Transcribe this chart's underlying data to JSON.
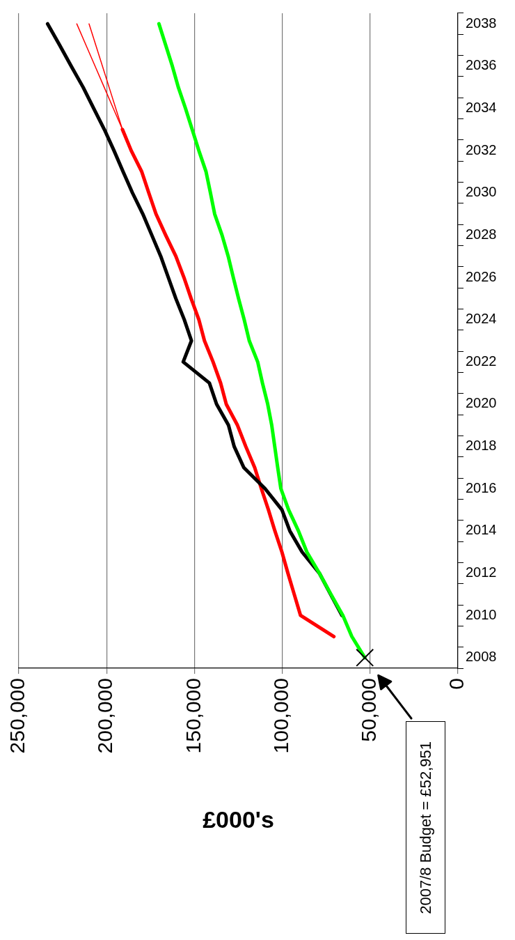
{
  "chart_data": {
    "type": "line",
    "orientation": "horizontal",
    "xlabel": "£000's",
    "categories": [
      "2038",
      null,
      "2036",
      null,
      "2034",
      null,
      "2032",
      null,
      "2030",
      null,
      "2028",
      null,
      "2026",
      null,
      "2024",
      null,
      "2022",
      null,
      "2020",
      null,
      "2018",
      null,
      "2016",
      null,
      "2014",
      null,
      "2012",
      null,
      "2010",
      null,
      "2008"
    ],
    "series": [
      {
        "color": "#00ff00",
        "values": [
          170200,
          166400,
          162600,
          159200,
          155100,
          151300,
          147500,
          143400,
          140900,
          138500,
          134300,
          130800,
          127900,
          124900,
          121700,
          118800,
          114000,
          111300,
          108300,
          106000,
          104300,
          102600,
          100800,
          96400,
          90800,
          86000,
          78900,
          72300,
          65500,
          60400,
          53000
        ]
      },
      {
        "color": "#000000",
        "values": [
          233600,
          226800,
          220200,
          213400,
          207400,
          201300,
          195800,
          190600,
          185300,
          179400,
          174300,
          169200,
          164900,
          160600,
          155800,
          151700,
          156400,
          141500,
          137400,
          130600,
          127400,
          121900,
          109800,
          100200,
          95700,
          88700,
          78900,
          72500,
          66000,
          null,
          null
        ]
      },
      {
        "color": "#ff0000",
        "values": [
          null,
          null,
          null,
          null,
          null,
          191000,
          186000,
          180000,
          176000,
          171900,
          166400,
          160600,
          156000,
          151900,
          147500,
          144300,
          139400,
          135100,
          131900,
          125500,
          120800,
          115700,
          111900,
          107900,
          104200,
          100200,
          96800,
          93200,
          89600,
          70600,
          null
        ]
      },
      {
        "color": "#ff0000",
        "values": [
          217000,
          211800,
          206600,
          201400,
          196200,
          191000,
          null,
          null,
          null,
          null,
          null,
          null,
          null,
          null,
          null,
          null,
          null,
          null,
          null,
          null,
          null,
          null,
          null,
          null,
          null,
          null,
          null,
          null,
          null,
          null,
          null
        ]
      },
      {
        "color": "#ff0000",
        "values": [
          210000,
          206200,
          202400,
          198600,
          194800,
          191000,
          null,
          null,
          null,
          null,
          null,
          null,
          null,
          null,
          null,
          null,
          null,
          null,
          null,
          null,
          null,
          null,
          null,
          null,
          null,
          null,
          null,
          null,
          null,
          null,
          null
        ]
      },
      {
        "type": "scatter",
        "marker": "cross",
        "color": "#000000",
        "values": [
          null,
          null,
          null,
          null,
          null,
          null,
          null,
          null,
          null,
          null,
          null,
          null,
          null,
          null,
          null,
          null,
          null,
          null,
          null,
          null,
          null,
          null,
          null,
          null,
          null,
          null,
          null,
          null,
          null,
          null,
          53000
        ]
      }
    ],
    "xlim": [
      250000,
      0
    ],
    "xticks": [
      {
        "value": 250000,
        "label": "250,000"
      },
      {
        "value": 200000,
        "label": "200,000"
      },
      {
        "value": 150000,
        "label": "150,000"
      },
      {
        "value": 100000,
        "label": "100,000"
      },
      {
        "value": 50000,
        "label": "50,000"
      },
      {
        "value": 0,
        "label": "0"
      }
    ],
    "grid": "x",
    "legend": false,
    "marker": "none",
    "line_style": "solid",
    "annotations": [
      "2007/8 Budget = £52,951"
    ]
  }
}
